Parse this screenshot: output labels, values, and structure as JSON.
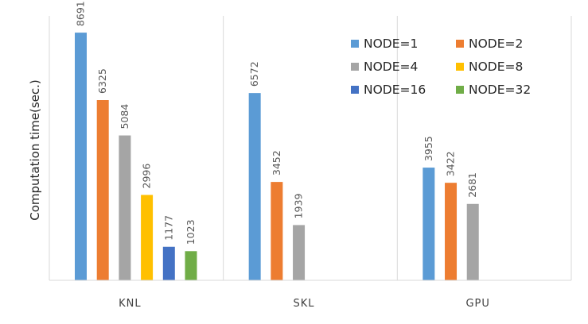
{
  "chart_data": {
    "type": "bar",
    "ylabel": "Computation time(sec.)",
    "xlabel": "",
    "categories": [
      "KNL",
      "SKL",
      "GPU"
    ],
    "ylim": [
      0,
      9000
    ],
    "grid": false,
    "legend_position": "top-right",
    "series": [
      {
        "name": "NODE=1",
        "color": "#5B9BD5",
        "values": [
          8691,
          6572,
          3955
        ]
      },
      {
        "name": "NODE=2",
        "color": "#ED7D31",
        "values": [
          6325,
          3452,
          3422
        ]
      },
      {
        "name": "NODE=4",
        "color": "#A5A5A5",
        "values": [
          5084,
          1939,
          2681
        ]
      },
      {
        "name": "NODE=8",
        "color": "#FFC000",
        "values": [
          2996,
          null,
          null
        ]
      },
      {
        "name": "NODE=16",
        "color": "#4472C4",
        "values": [
          1177,
          null,
          null
        ]
      },
      {
        "name": "NODE=32",
        "color": "#70AD47",
        "values": [
          1023,
          null,
          null
        ]
      }
    ]
  }
}
